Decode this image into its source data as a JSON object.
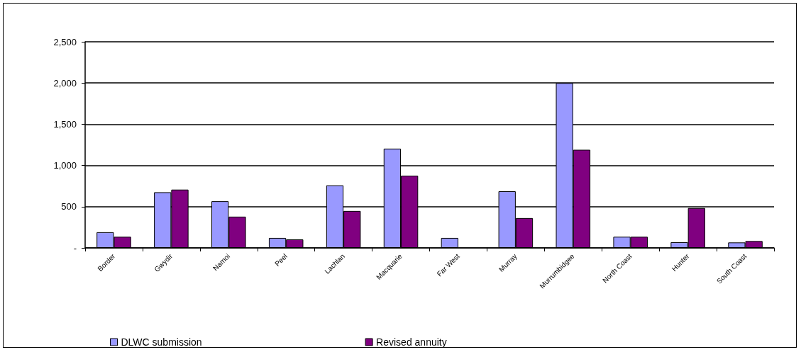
{
  "chart_data": {
    "type": "bar",
    "categories": [
      "Border",
      "Gwydir",
      "Namoi",
      "Peel",
      "Lachlan",
      "Macquarie",
      "Far West",
      "Murray",
      "Murrumbidgee",
      "North Coast",
      "Hunter",
      "South Coast"
    ],
    "series": [
      {
        "name": "DLWC submission",
        "color": "#9999ff",
        "values": [
          190,
          675,
          566,
          121,
          759,
          1204,
          121,
          687,
          2000,
          135,
          69,
          66
        ]
      },
      {
        "name": "Revised annuity",
        "color": "#800080",
        "values": [
          135,
          707,
          379,
          103,
          448,
          876,
          null,
          362,
          1190,
          135,
          483,
          83
        ]
      }
    ],
    "ylim": [
      0,
      2500
    ],
    "yticks": [
      {
        "value": 0,
        "label": "-"
      },
      500,
      {
        "value": 1000,
        "label": "1,000"
      },
      {
        "value": 1500,
        "label": "1,500"
      },
      {
        "value": 2000,
        "label": "2,000"
      },
      {
        "value": 2500,
        "label": "2,500"
      }
    ],
    "grid": "y",
    "legend": "bottom"
  }
}
